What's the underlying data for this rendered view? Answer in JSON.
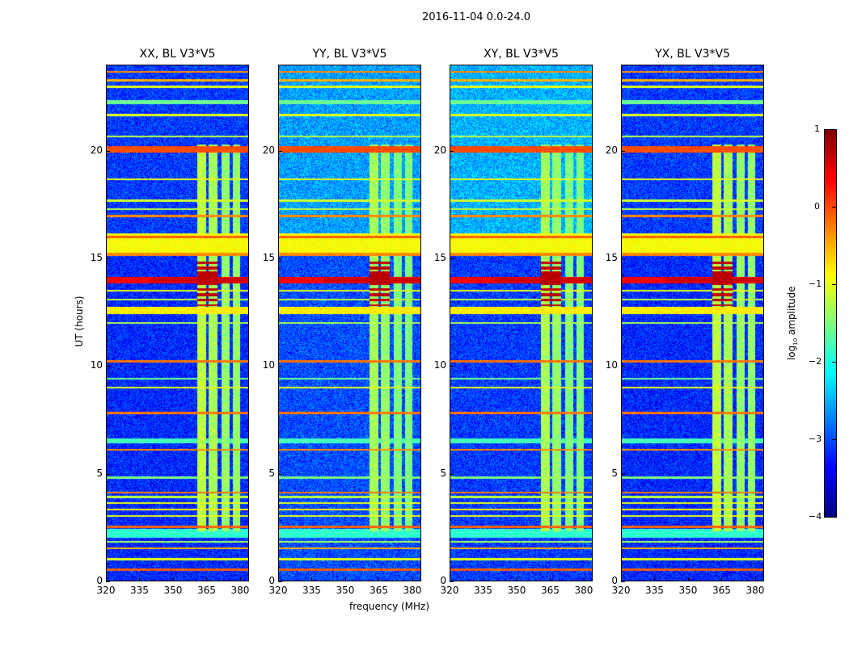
{
  "figure": {
    "title": "2016-11-04 0.0-24.0"
  },
  "chart_data": {
    "type": "heatmap",
    "xlabel": "frequency (MHz)",
    "ylabel": "UT (hours)",
    "xlim": [
      320,
      384
    ],
    "ylim": [
      0,
      24
    ],
    "xticks": [
      320,
      335,
      350,
      365,
      380
    ],
    "yticks": [
      0,
      5,
      10,
      15,
      20
    ],
    "colorbar": {
      "label": "log10 amplitude",
      "label_main": "log",
      "label_sub": "10",
      "label_tail": " amplitude",
      "range": [
        -4,
        1
      ],
      "ticks": [
        1,
        0,
        -1,
        -2,
        -3,
        -4
      ],
      "tick_labels": [
        "1",
        "0",
        "−1",
        "−2",
        "−3",
        "−4"
      ],
      "colormap": "jet"
    },
    "panels": [
      {
        "title": "XX, BL V3*V5",
        "background": -3.2,
        "upper_background": -3.1
      },
      {
        "title": "YY, BL V3*V5",
        "background": -3.0,
        "upper_background": -2.6
      },
      {
        "title": "XY, BL V3*V5",
        "background": -3.1,
        "upper_background": -2.5
      },
      {
        "title": "YX, BL V3*V5",
        "background": -3.2,
        "upper_background": -3.1
      }
    ],
    "frequency_bands": [
      {
        "from": 361,
        "to": 365,
        "level": -1.2,
        "t_start": 2.3,
        "t_end": 20.3
      },
      {
        "from": 366,
        "to": 370,
        "level": -1.3,
        "t_start": 2.3,
        "t_end": 20.3
      },
      {
        "from": 372,
        "to": 375.5,
        "level": -1.4,
        "t_start": 2.3,
        "t_end": 20.3
      },
      {
        "from": 377,
        "to": 380.5,
        "level": -1.4,
        "t_start": 2.3,
        "t_end": 20.3
      }
    ],
    "burst": {
      "freq_from": 361,
      "freq_to": 370,
      "t_start": 12.8,
      "t_end": 15.0,
      "level": 0.9
    },
    "time_lines": [
      {
        "t": 0.5,
        "width": 0.08,
        "level": -0.1
      },
      {
        "t": 1.0,
        "width": 0.06,
        "level": -1.0
      },
      {
        "t": 1.5,
        "width": 0.06,
        "level": -0.5
      },
      {
        "t": 1.8,
        "width": 0.05,
        "level": -1.3
      },
      {
        "t": 2.2,
        "width": 0.35,
        "level": -1.9
      },
      {
        "t": 2.5,
        "width": 0.07,
        "level": -0.1
      },
      {
        "t": 3.0,
        "width": 0.05,
        "level": -1.0
      },
      {
        "t": 3.3,
        "width": 0.05,
        "level": -0.8
      },
      {
        "t": 3.6,
        "width": 0.05,
        "level": -1.0
      },
      {
        "t": 3.9,
        "width": 0.05,
        "level": -1.2
      },
      {
        "t": 4.1,
        "width": 0.07,
        "level": -0.2
      },
      {
        "t": 4.8,
        "width": 0.05,
        "level": -1.5
      },
      {
        "t": 6.1,
        "width": 0.06,
        "level": -0.3
      },
      {
        "t": 6.5,
        "width": 0.2,
        "level": -1.8
      },
      {
        "t": 7.8,
        "width": 0.07,
        "level": -0.2
      },
      {
        "t": 9.0,
        "width": 0.05,
        "level": -1.0
      },
      {
        "t": 9.4,
        "width": 0.05,
        "level": -1.6
      },
      {
        "t": 10.2,
        "width": 0.07,
        "level": -0.2
      },
      {
        "t": 12.0,
        "width": 0.05,
        "level": -1.3
      },
      {
        "t": 12.6,
        "width": 0.3,
        "level": -0.8
      },
      {
        "t": 13.1,
        "width": 0.05,
        "level": -1.2
      },
      {
        "t": 13.5,
        "width": 0.05,
        "level": -1.0
      },
      {
        "t": 14.0,
        "width": 0.25,
        "level": 0.4
      },
      {
        "t": 15.2,
        "width": 0.08,
        "level": -0.3
      },
      {
        "t": 15.7,
        "width": 0.9,
        "level": -0.9
      },
      {
        "t": 16.0,
        "width": 0.08,
        "level": -0.1
      },
      {
        "t": 17.0,
        "width": 0.07,
        "level": -0.3
      },
      {
        "t": 17.3,
        "width": 0.05,
        "level": -1.2
      },
      {
        "t": 17.7,
        "width": 0.05,
        "level": -1.1
      },
      {
        "t": 18.7,
        "width": 0.05,
        "level": -1.0
      },
      {
        "t": 20.1,
        "width": 0.25,
        "level": 0.0
      },
      {
        "t": 20.7,
        "width": 0.05,
        "level": -1.2
      },
      {
        "t": 21.7,
        "width": 0.07,
        "level": -1.0
      },
      {
        "t": 22.3,
        "width": 0.15,
        "level": -1.6
      },
      {
        "t": 23.0,
        "width": 0.05,
        "level": -1.0
      },
      {
        "t": 23.3,
        "width": 0.06,
        "level": -0.5
      },
      {
        "t": 23.7,
        "width": 0.06,
        "level": -0.3
      }
    ]
  }
}
